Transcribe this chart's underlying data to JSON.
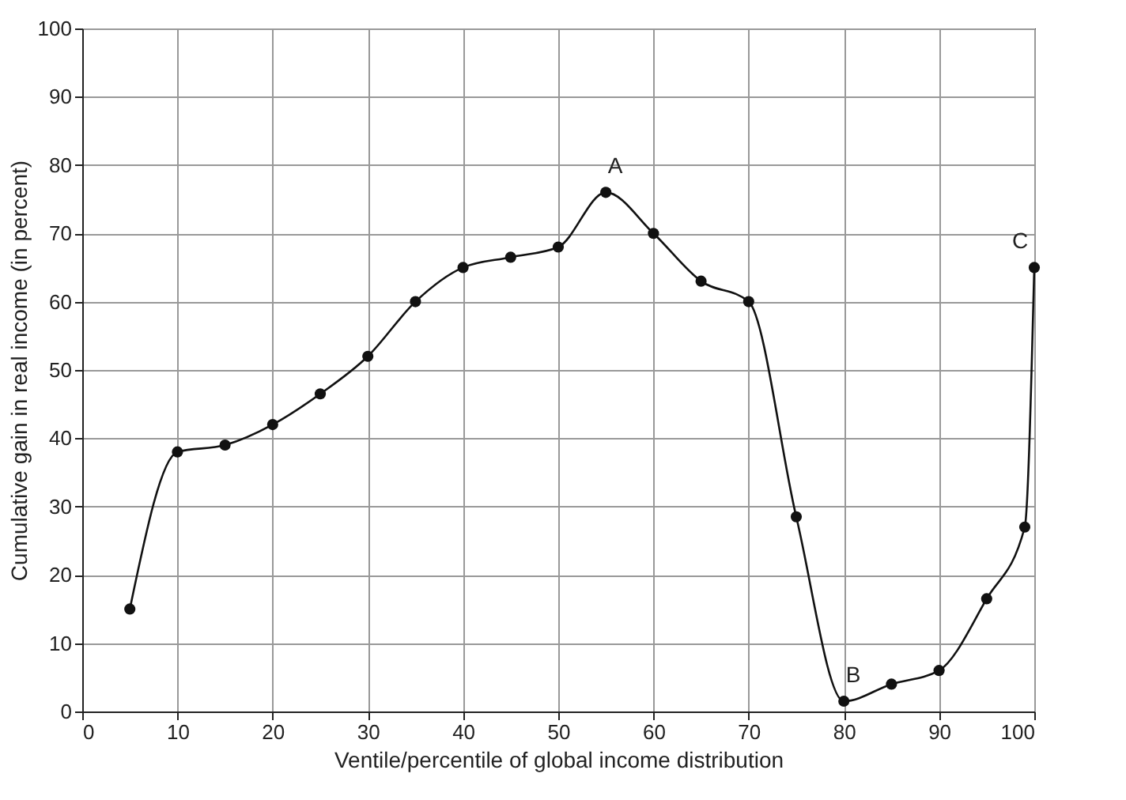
{
  "chart_data": {
    "type": "line",
    "xlabel": "Ventile/percentile of global income distribution",
    "ylabel": "Cumulative gain in real income (in percent)",
    "x": [
      5,
      10,
      15,
      20,
      25,
      30,
      35,
      40,
      45,
      50,
      55,
      60,
      65,
      70,
      75,
      80,
      85,
      90,
      95,
      99,
      100
    ],
    "series": [
      {
        "color": "#111111",
        "values": [
          15,
          38,
          39,
          42,
          46.5,
          52,
          60,
          65,
          66.5,
          68,
          76,
          70,
          63,
          60,
          28.5,
          1.5,
          4,
          6,
          16.5,
          27,
          65
        ]
      }
    ],
    "annotations": [
      {
        "text": "A",
        "x": 55,
        "y": 76
      },
      {
        "text": "B",
        "x": 80,
        "y": 1.5
      },
      {
        "text": "C",
        "x": 100,
        "y": 65
      }
    ],
    "xlim": [
      0,
      100
    ],
    "xticks": [
      0,
      10,
      20,
      30,
      40,
      50,
      60,
      70,
      80,
      90,
      100
    ],
    "ylim": [
      0,
      100
    ],
    "yticks": [
      0,
      10,
      20,
      30,
      40,
      50,
      60,
      70,
      80,
      90,
      100
    ],
    "grid": true,
    "marker": "circle",
    "line_style": "solid"
  }
}
